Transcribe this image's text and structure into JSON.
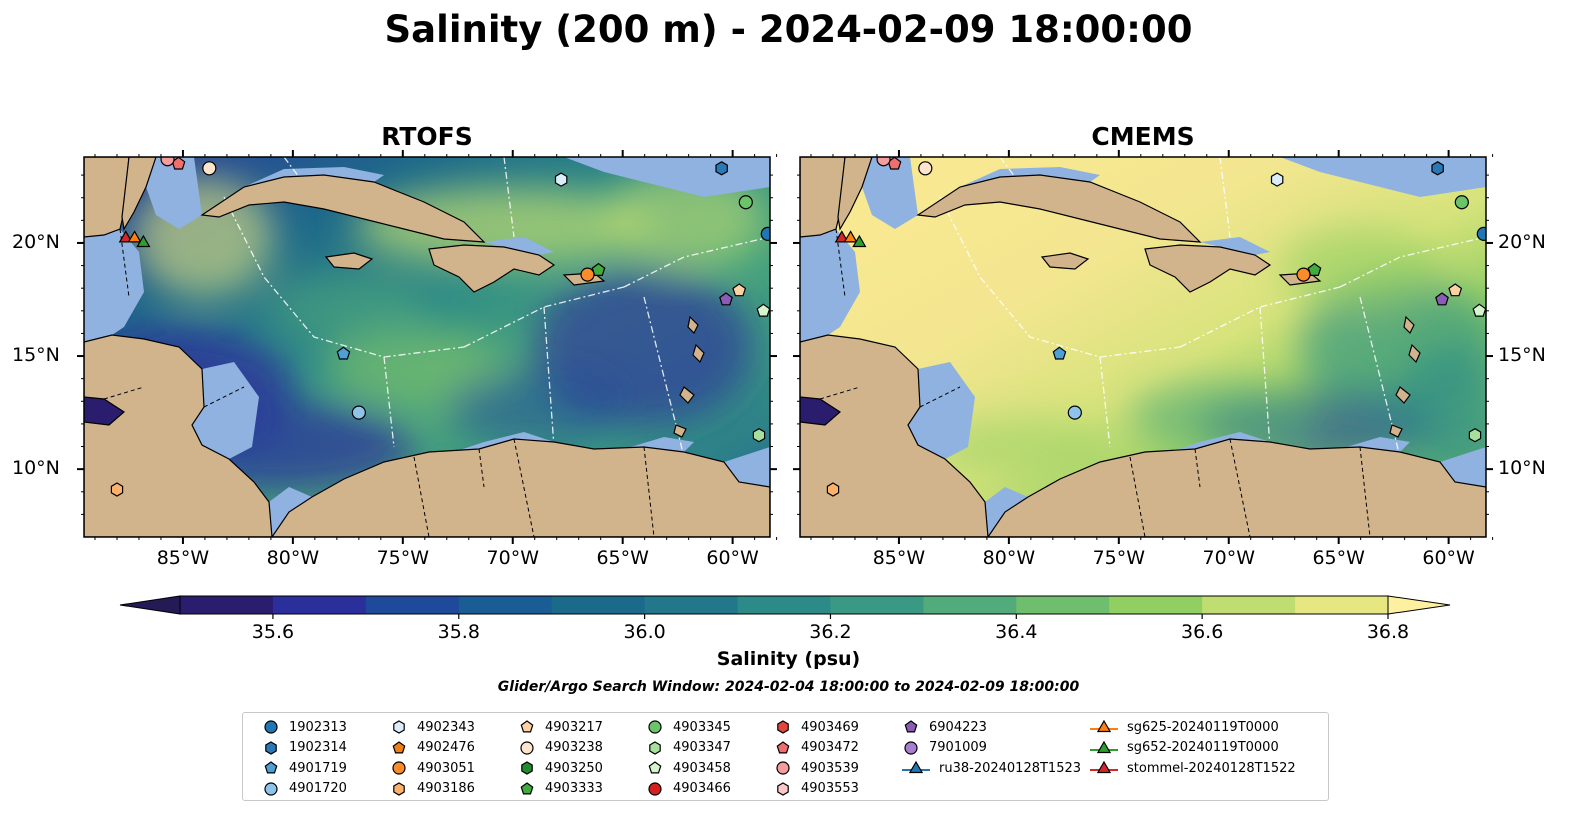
{
  "title": "Salinity (200 m) - 2024-02-09 18:00:00",
  "panels": [
    {
      "id": "rtofs",
      "title": "RTOFS"
    },
    {
      "id": "cmems",
      "title": "CMEMS"
    }
  ],
  "map": {
    "lon_range": [
      -89.5,
      -58.3
    ],
    "lat_range": [
      7.0,
      23.8
    ],
    "lon_ticks": [
      {
        "value": -85,
        "label": "85°W"
      },
      {
        "value": -80,
        "label": "80°W"
      },
      {
        "value": -75,
        "label": "75°W"
      },
      {
        "value": -70,
        "label": "70°W"
      },
      {
        "value": -65,
        "label": "65°W"
      },
      {
        "value": -60,
        "label": "60°W"
      }
    ],
    "lat_ticks": [
      {
        "value": 20,
        "label": "20°N"
      },
      {
        "value": 15,
        "label": "15°N"
      },
      {
        "value": 10,
        "label": "10°N"
      }
    ]
  },
  "colorbar": {
    "label": "Salinity (psu)",
    "min": 35.5,
    "max": 36.9,
    "extend": "both",
    "ticks": [
      {
        "value": 35.6,
        "label": "35.6"
      },
      {
        "value": 35.8,
        "label": "35.8"
      },
      {
        "value": 36.0,
        "label": "36.0"
      },
      {
        "value": 36.2,
        "label": "36.2"
      },
      {
        "value": 36.4,
        "label": "36.4"
      },
      {
        "value": 36.6,
        "label": "36.6"
      },
      {
        "value": 36.8,
        "label": "36.8"
      }
    ],
    "colors": [
      "#2a1d6e",
      "#2b2f9c",
      "#1f4a9c",
      "#1a5c94",
      "#1c6a8a",
      "#22788a",
      "#2c8a88",
      "#3a9982",
      "#52ab7a",
      "#6fbe6e",
      "#92cf62",
      "#bfdd70",
      "#e6e780"
    ],
    "under_color": "#241a55",
    "over_color": "#fdf0a0"
  },
  "search_window": "Glider/Argo Search Window: 2024-02-04 18:00:00 to 2024-02-09 18:00:00",
  "legend": [
    {
      "label": "1902313",
      "marker": "circle",
      "color": "#1f77b4"
    },
    {
      "label": "1902314",
      "marker": "hexagon",
      "color": "#2b78b7"
    },
    {
      "label": "4901719",
      "marker": "pentagon",
      "color": "#4d9fd6"
    },
    {
      "label": "4901720",
      "marker": "circle",
      "color": "#8ec4ea"
    },
    {
      "label": "4902343",
      "marker": "hexagon",
      "color": "#dbecfb"
    },
    {
      "label": "4902476",
      "marker": "pentagon",
      "color": "#f07f14"
    },
    {
      "label": "4903051",
      "marker": "circle",
      "color": "#fb8c2c"
    },
    {
      "label": "4903186",
      "marker": "hexagon",
      "color": "#fdb26b"
    },
    {
      "label": "4903217",
      "marker": "pentagon",
      "color": "#fdd1a2"
    },
    {
      "label": "4903238",
      "marker": "circle",
      "color": "#fde4cc"
    },
    {
      "label": "4903250",
      "marker": "hexagon",
      "color": "#238b2d"
    },
    {
      "label": "4903333",
      "marker": "pentagon",
      "color": "#41ab3d"
    },
    {
      "label": "4903345",
      "marker": "circle",
      "color": "#6cc46a"
    },
    {
      "label": "4903347",
      "marker": "hexagon",
      "color": "#a6e09c"
    },
    {
      "label": "4903458",
      "marker": "pentagon",
      "color": "#d6f5cf"
    },
    {
      "label": "4903466",
      "marker": "circle",
      "color": "#d62020"
    },
    {
      "label": "4903469",
      "marker": "hexagon",
      "color": "#e3463f"
    },
    {
      "label": "4903472",
      "marker": "pentagon",
      "color": "#f06e6e"
    },
    {
      "label": "4903539",
      "marker": "circle",
      "color": "#f59c9c"
    },
    {
      "label": "4903553",
      "marker": "hexagon",
      "color": "#fcc9c9"
    },
    {
      "label": "6904223",
      "marker": "pentagon",
      "color": "#8a5cb5"
    },
    {
      "label": "7901009",
      "marker": "circle",
      "color": "#a87ed1"
    },
    {
      "label": "ru38-20240128T1523",
      "marker": "triangle-line",
      "color": "#1f77b4"
    },
    {
      "label": "sg625-20240119T0000",
      "marker": "triangle-line",
      "color": "#ff7f0e"
    },
    {
      "label": "sg652-20240119T0000",
      "marker": "triangle-line",
      "color": "#2ca02c"
    },
    {
      "label": "stommel-20240128T1522",
      "marker": "triangle-line",
      "color": "#d62728"
    }
  ],
  "floats": [
    {
      "id": "1902313",
      "lon": -58.4,
      "lat": 20.4
    },
    {
      "id": "1902314",
      "lon": -60.5,
      "lat": 23.3
    },
    {
      "id": "4901719",
      "lon": -77.7,
      "lat": 15.1
    },
    {
      "id": "4901720",
      "lon": -77.0,
      "lat": 12.5
    },
    {
      "id": "4902343",
      "lon": -67.8,
      "lat": 22.8
    },
    {
      "id": "4903051",
      "lon": -66.6,
      "lat": 18.6
    },
    {
      "id": "4903186",
      "lon": -88.0,
      "lat": 9.1
    },
    {
      "id": "4903217",
      "lon": -59.7,
      "lat": 17.9
    },
    {
      "id": "4903238",
      "lon": -83.8,
      "lat": 23.3
    },
    {
      "id": "4903333",
      "lon": -66.1,
      "lat": 18.8
    },
    {
      "id": "4903345",
      "lon": -59.4,
      "lat": 21.8
    },
    {
      "id": "4903347",
      "lon": -58.8,
      "lat": 11.5
    },
    {
      "id": "4903458",
      "lon": -58.6,
      "lat": 17.0
    },
    {
      "id": "4903472",
      "lon": -85.2,
      "lat": 23.5
    },
    {
      "id": "4903539",
      "lon": -85.7,
      "lat": 23.7
    },
    {
      "id": "6904223",
      "lon": -60.3,
      "lat": 17.5
    }
  ],
  "gliders": [
    {
      "id": "stommel-20240128T1522",
      "lon": -87.6,
      "lat": 20.2
    },
    {
      "id": "sg625-20240119T0000",
      "lon": -87.2,
      "lat": 20.2
    },
    {
      "id": "sg652-20240119T0000",
      "lon": -86.8,
      "lat": 20.0
    }
  ]
}
